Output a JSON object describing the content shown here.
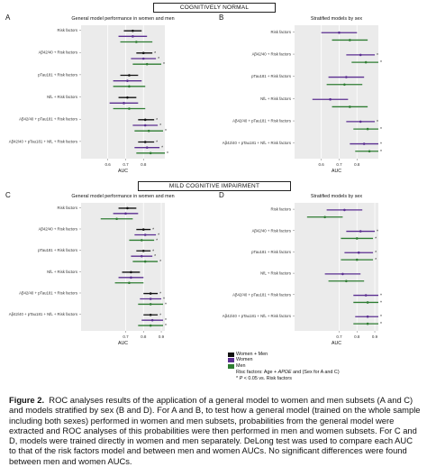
{
  "headers": {
    "cn": "COGNITIVELY NORMAL",
    "mci": "MILD COGNITIVE IMPAIRMENT"
  },
  "colors": {
    "both": "#111111",
    "women": "#5b2e91",
    "men": "#2e7d32"
  },
  "chart_data": [
    {
      "panel": "A",
      "type": "forest",
      "title": "General model performance in women and men",
      "xlabel": "AUC",
      "xlim": [
        0.45,
        0.92
      ],
      "ticks": [
        0.6,
        0.7,
        0.8
      ],
      "categories": [
        "Risk factors",
        "Aβ42/40 + Risk factors",
        "pTau181 + Risk factors",
        "NfL + Risk factors",
        "Aβ42/40 + pTau181 + Risk factors",
        "Aβ42/40 + pTau181 + NfL + Risk factors"
      ],
      "series": [
        {
          "name": "Women + Men",
          "est": [
            0.74,
            0.8,
            0.72,
            0.71,
            0.81,
            0.81
          ],
          "lo": [
            0.69,
            0.76,
            0.67,
            0.66,
            0.77,
            0.77
          ],
          "hi": [
            0.79,
            0.85,
            0.77,
            0.76,
            0.86,
            0.86
          ],
          "sig": [
            false,
            true,
            false,
            false,
            true,
            true
          ]
        },
        {
          "name": "Women",
          "est": [
            0.74,
            0.8,
            0.71,
            0.69,
            0.81,
            0.82
          ],
          "lo": [
            0.66,
            0.73,
            0.63,
            0.61,
            0.74,
            0.75
          ],
          "hi": [
            0.82,
            0.87,
            0.79,
            0.77,
            0.88,
            0.89
          ],
          "sig": [
            false,
            true,
            false,
            false,
            true,
            true
          ]
        },
        {
          "name": "Men",
          "est": [
            0.76,
            0.82,
            0.72,
            0.72,
            0.83,
            0.84
          ],
          "lo": [
            0.67,
            0.74,
            0.63,
            0.63,
            0.75,
            0.76
          ],
          "hi": [
            0.85,
            0.9,
            0.81,
            0.81,
            0.91,
            0.92
          ],
          "sig": [
            false,
            true,
            false,
            false,
            true,
            true
          ]
        }
      ]
    },
    {
      "panel": "B",
      "type": "forest",
      "title": "Stratified models by sex",
      "xlabel": "AUC",
      "xlim": [
        0.45,
        0.92
      ],
      "ticks": [
        0.6,
        0.7,
        0.8
      ],
      "categories": [
        "Risk factors",
        "Aβ42/40 + Risk factors",
        "pTau181 + Risk factors",
        "NfL + Risk factors",
        "Aβ42/40 + pTau181 + Risk factors",
        "Aβ42/40 + pTau181 + NfL + Risk factors"
      ],
      "series": [
        {
          "name": "Women",
          "est": [
            0.7,
            0.82,
            0.74,
            0.65,
            0.82,
            0.84
          ],
          "lo": [
            0.6,
            0.74,
            0.64,
            0.55,
            0.74,
            0.76
          ],
          "hi": [
            0.8,
            0.9,
            0.84,
            0.75,
            0.9,
            0.92
          ],
          "sig": [
            false,
            true,
            false,
            false,
            true,
            true
          ]
        },
        {
          "name": "Men",
          "est": [
            0.76,
            0.85,
            0.73,
            0.76,
            0.86,
            0.87
          ],
          "lo": [
            0.66,
            0.77,
            0.63,
            0.66,
            0.78,
            0.79
          ],
          "hi": [
            0.86,
            0.92,
            0.83,
            0.86,
            0.92,
            0.92
          ],
          "sig": [
            false,
            true,
            false,
            false,
            true,
            true
          ]
        }
      ]
    },
    {
      "panel": "C",
      "type": "forest",
      "title": "General model performance in women and men",
      "xlabel": "AUC",
      "xlim": [
        0.45,
        0.92
      ],
      "ticks": [
        0.7,
        0.8,
        0.9
      ],
      "categories": [
        "Risk factors",
        "Aβ42/40 + Risk factors",
        "pTau181 + Risk factors",
        "NfL + Risk factors",
        "Aβ42/40 + pTau181 + Risk factors",
        "Aβ42/40 + pTau181 + NfL + Risk factors"
      ],
      "series": [
        {
          "name": "Women + Men",
          "est": [
            0.71,
            0.8,
            0.8,
            0.73,
            0.84,
            0.84
          ],
          "lo": [
            0.66,
            0.76,
            0.76,
            0.68,
            0.8,
            0.8
          ],
          "hi": [
            0.76,
            0.84,
            0.84,
            0.78,
            0.88,
            0.88
          ],
          "sig": [
            false,
            true,
            true,
            false,
            true,
            true
          ]
        },
        {
          "name": "Women",
          "est": [
            0.7,
            0.81,
            0.79,
            0.73,
            0.84,
            0.85
          ],
          "lo": [
            0.63,
            0.75,
            0.73,
            0.66,
            0.78,
            0.79
          ],
          "hi": [
            0.77,
            0.87,
            0.85,
            0.8,
            0.9,
            0.91
          ],
          "sig": [
            false,
            true,
            true,
            false,
            true,
            true
          ]
        },
        {
          "name": "Men",
          "est": [
            0.65,
            0.79,
            0.81,
            0.72,
            0.84,
            0.84
          ],
          "lo": [
            0.56,
            0.72,
            0.74,
            0.64,
            0.77,
            0.77
          ],
          "hi": [
            0.74,
            0.86,
            0.88,
            0.8,
            0.91,
            0.91
          ],
          "sig": [
            false,
            true,
            true,
            false,
            true,
            true
          ]
        }
      ]
    },
    {
      "panel": "D",
      "type": "forest",
      "title": "Stratified models by sex",
      "xlabel": "AUC",
      "xlim": [
        0.45,
        0.92
      ],
      "ticks": [
        0.7,
        0.8,
        0.9
      ],
      "categories": [
        "Risk factors",
        "Aβ42/40 + Risk factors",
        "pTau181 + Risk factors",
        "NfL + Risk factors",
        "Aβ42/40 + pTau181 + Risk factors",
        "Aβ42/40 + pTau181 + NfL + Risk factors"
      ],
      "series": [
        {
          "name": "Women",
          "est": [
            0.73,
            0.82,
            0.81,
            0.72,
            0.85,
            0.86
          ],
          "lo": [
            0.63,
            0.74,
            0.73,
            0.62,
            0.78,
            0.79
          ],
          "hi": [
            0.83,
            0.9,
            0.89,
            0.82,
            0.92,
            0.92
          ],
          "sig": [
            false,
            true,
            true,
            false,
            true,
            true
          ]
        },
        {
          "name": "Men",
          "est": [
            0.62,
            0.8,
            0.8,
            0.74,
            0.86,
            0.86
          ],
          "lo": [
            0.52,
            0.71,
            0.71,
            0.64,
            0.78,
            0.78
          ],
          "hi": [
            0.72,
            0.89,
            0.89,
            0.84,
            0.92,
            0.92
          ],
          "sig": [
            false,
            true,
            true,
            false,
            true,
            true
          ]
        }
      ]
    }
  ],
  "legend": {
    "items": [
      {
        "label": "Women + Men",
        "color": "#111111"
      },
      {
        "label": "Women",
        "color": "#5b2e91"
      },
      {
        "label": "Men",
        "color": "#2e7d32"
      }
    ],
    "note_pre": "Risc factors: Age + ",
    "note_gene": "APOE",
    "note_post": " and (Sex for A and C)",
    "sig_pre": "* ",
    "sig_p": "P",
    "sig_post": " < 0.05 vs. Risk factors"
  },
  "caption": {
    "label": "Figure 2.",
    "text": "ROC analyses results of the application of a general model to women and men subsets (A and C) and models stratified by sex (B and D). For A and B, to test how a general model (trained on the whole sample including both sexes) performed in women and men subsets, probabilities from the general model were extracted and ROC analyses of this probabilities were then performed in men and women subsets. For C and D, models were trained directly in women and men separately. DeLong test was used to compare each AUC to that of the risk factors model and between men and women AUCs. No significant differences were found between men and women AUCs."
  }
}
